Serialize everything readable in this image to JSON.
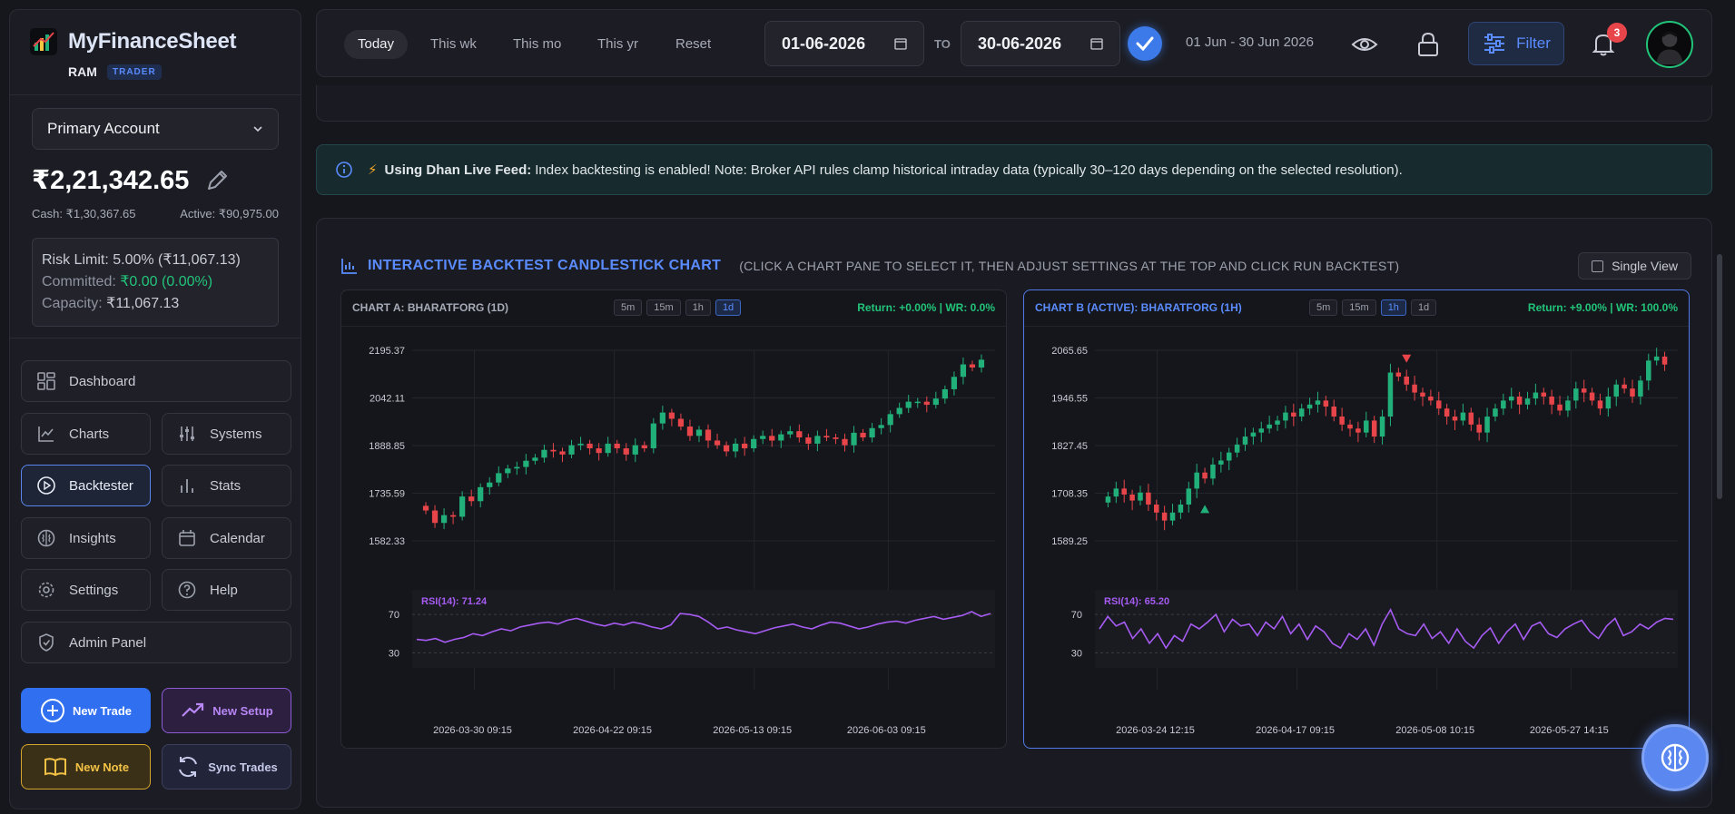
{
  "app": {
    "name_a": "MyFinance",
    "name_b": "Sheet",
    "user": "RAM",
    "role": "TRADER"
  },
  "account": {
    "selected": "Primary Account",
    "balance": "₹2,21,342.65",
    "cash": "Cash: ₹1,30,367.65",
    "active": "Active: ₹90,975.00",
    "risk_limit": "Risk Limit: 5.00% (₹11,067.13)",
    "committed_label": "Committed:",
    "committed_value": "₹0.00 (0.00%)",
    "capacity_label": "Capacity:",
    "capacity_value": "₹11,067.13"
  },
  "nav": {
    "dashboard": "Dashboard",
    "charts": "Charts",
    "systems": "Systems",
    "backtester": "Backtester",
    "stats": "Stats",
    "insights": "Insights",
    "calendar": "Calendar",
    "settings": "Settings",
    "help": "Help",
    "admin": "Admin Panel"
  },
  "actions": {
    "new_trade": "New Trade",
    "new_setup": "New Setup",
    "new_note": "New Note",
    "sync_trades": "Sync Trades"
  },
  "topbar": {
    "periods": [
      "Today",
      "This wk",
      "This mo",
      "This yr",
      "Reset"
    ],
    "from_date": "01-06-2026",
    "to_label": "TO",
    "to_date": "30-06-2026",
    "range_text": "01 Jun - 30 Jun 2026",
    "filter_label": "Filter",
    "notifications": "3"
  },
  "info": {
    "bold": "Using Dhan Live Feed:",
    "text": "Index backtesting is enabled! Note: Broker API rules clamp historical intraday data (typically 30–120 days depending on the selected resolution)."
  },
  "panel": {
    "title": "INTERACTIVE BACKTEST CANDLESTICK CHART",
    "hint": "(CLICK A CHART PANE TO SELECT IT, THEN ADJUST SETTINGS AT THE TOP AND CLICK RUN BACKTEST)",
    "single_view": "Single View"
  },
  "colors": {
    "accent": "#5a8cff",
    "up": "#22b07a",
    "down": "#e8454a",
    "rsi": "#a65bf2"
  },
  "chart_data": [
    {
      "type": "candlestick",
      "title": "CHART A: BHARATFORG (1D)",
      "resolutions": [
        "5m",
        "15m",
        "1h",
        "1d"
      ],
      "selected_resolution": "1d",
      "return_text": "Return: +0.00% | WR: 0.0%",
      "y_ticks": [
        "2195.37",
        "2042.11",
        "1888.85",
        "1735.59",
        "1582.33"
      ],
      "ylim": [
        1582.33,
        2195.37
      ],
      "x_ticks": [
        "2026-03-30 09:15",
        "2026-04-22 09:15",
        "2026-05-13 09:15",
        "2026-06-03 09:15"
      ],
      "close": [
        1680,
        1640,
        1665,
        1660,
        1725,
        1710,
        1755,
        1770,
        1800,
        1815,
        1820,
        1840,
        1850,
        1875,
        1870,
        1860,
        1890,
        1895,
        1880,
        1865,
        1895,
        1880,
        1860,
        1890,
        1880,
        1960,
        1995,
        1975,
        1950,
        1920,
        1940,
        1905,
        1890,
        1870,
        1895,
        1880,
        1910,
        1920,
        1905,
        1925,
        1935,
        1915,
        1895,
        1920,
        1915,
        1910,
        1890,
        1930,
        1915,
        1945,
        1955,
        1990,
        2010,
        2030,
        2030,
        2020,
        2040,
        2070,
        2110,
        2150,
        2140,
        2165
      ],
      "rsi_label": "RSI(14): 71.24",
      "rsi_levels": [
        70,
        30
      ],
      "rsi": [
        44,
        43,
        45,
        41,
        44,
        46,
        50,
        48,
        52,
        55,
        53,
        57,
        59,
        61,
        62,
        60,
        64,
        66,
        63,
        60,
        58,
        61,
        59,
        62,
        60,
        57,
        55,
        59,
        71,
        70,
        68,
        62,
        55,
        57,
        54,
        52,
        50,
        53,
        56,
        58,
        60,
        57,
        55,
        59,
        62,
        61,
        58,
        55,
        57,
        60,
        62,
        63,
        61,
        64,
        66,
        68,
        65,
        67,
        69,
        73,
        68,
        71
      ]
    },
    {
      "type": "candlestick",
      "title": "CHART B (ACTIVE): BHARATFORG (1H)",
      "resolutions": [
        "5m",
        "15m",
        "1h",
        "1d"
      ],
      "selected_resolution": "1h",
      "return_text": "Return: +9.00% | WR: 100.0%",
      "y_ticks": [
        "2065.65",
        "1946.55",
        "1827.45",
        "1708.35",
        "1589.25"
      ],
      "ylim": [
        1589.25,
        2065.65
      ],
      "x_ticks": [
        "2026-03-24 12:15",
        "2026-04-17 09:15",
        "2026-05-08 10:15",
        "2026-05-27 14:15"
      ],
      "close": [
        1700,
        1720,
        1705,
        1690,
        1710,
        1680,
        1660,
        1640,
        1660,
        1680,
        1720,
        1760,
        1745,
        1780,
        1790,
        1810,
        1830,
        1850,
        1860,
        1870,
        1880,
        1890,
        1910,
        1900,
        1920,
        1930,
        1940,
        1925,
        1900,
        1880,
        1870,
        1860,
        1890,
        1850,
        1900,
        2010,
        2000,
        1980,
        1960,
        1950,
        1940,
        1920,
        1900,
        1890,
        1910,
        1880,
        1860,
        1900,
        1920,
        1940,
        1950,
        1930,
        1945,
        1960,
        1950,
        1930,
        1915,
        1940,
        1970,
        1960,
        1940,
        1920,
        1950,
        1980,
        1970,
        1950,
        1990,
        2040,
        2050,
        2030
      ],
      "rsi_label": "RSI(14): 65.20",
      "rsi_levels": [
        70,
        30
      ],
      "rsi": [
        55,
        68,
        58,
        62,
        45,
        55,
        40,
        50,
        35,
        48,
        42,
        60,
        55,
        62,
        70,
        52,
        65,
        58,
        60,
        48,
        62,
        55,
        68,
        50,
        60,
        44,
        58,
        52,
        40,
        35,
        50,
        44,
        55,
        38,
        60,
        75,
        55,
        50,
        48,
        60,
        45,
        52,
        40,
        55,
        42,
        35,
        48,
        56,
        40,
        52,
        60,
        44,
        58,
        62,
        50,
        46,
        55,
        60,
        64,
        52,
        45,
        58,
        66,
        48,
        52,
        60,
        55,
        62,
        66,
        65
      ],
      "buy_marker_index": 12,
      "sell_marker_index": 37
    }
  ]
}
